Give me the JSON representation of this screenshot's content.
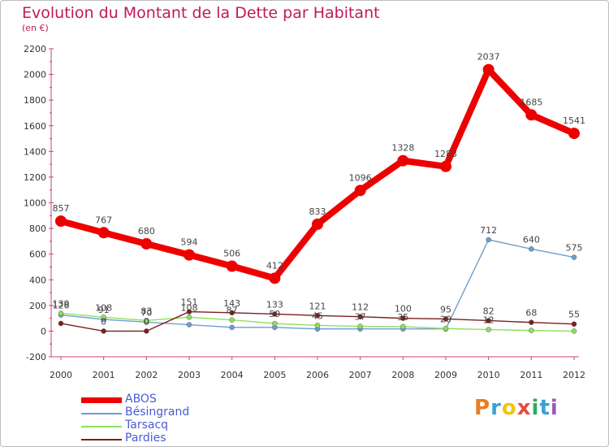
{
  "title": "Evolution du Montant de la Dette par Habitant",
  "subtitle": "(en €)",
  "logo": {
    "letters": [
      "P",
      "r",
      "o",
      "x",
      "i",
      "t",
      "i"
    ],
    "colors": [
      "#e67e22",
      "#3aa0d8",
      "#f1c40f",
      "#e74c3c",
      "#27ae60",
      "#3aa0d8",
      "#9b59b6"
    ]
  },
  "chart_data": {
    "type": "line",
    "categories": [
      "2000",
      "2001",
      "2002",
      "2003",
      "2004",
      "2005",
      "2006",
      "2007",
      "2008",
      "2009",
      "2010",
      "2011",
      "2012"
    ],
    "ylim": [
      -200,
      2200
    ],
    "yticks": [
      -200,
      0,
      200,
      400,
      600,
      800,
      1000,
      1200,
      1400,
      1600,
      1800,
      2000,
      2200
    ],
    "grid": false,
    "legend_position": "bottom-left",
    "series": [
      {
        "name": "ABOS",
        "color": "#ee0000",
        "values": [
          857,
          767,
          680,
          594,
          506,
          412,
          833,
          1096,
          1328,
          1283,
          2037,
          1685,
          1541
        ]
      },
      {
        "name": "Bésingrand",
        "color": "#6aa0d0",
        "values": [
          126,
          91,
          70,
          50,
          29,
          29,
          17,
          17,
          17,
          17,
          712,
          640,
          575
        ]
      },
      {
        "name": "Tarsacq",
        "color": "#8ee05c",
        "values": [
          139,
          108,
          83,
          108,
          87,
          59,
          45,
          37,
          35,
          20,
          12,
          5,
          0
        ]
      },
      {
        "name": "Pardies",
        "color": "#7a1f1f",
        "values": [
          60,
          0,
          0,
          151,
          143,
          133,
          121,
          112,
          100,
          95,
          82,
          68,
          55
        ]
      }
    ],
    "labels": {
      "ABOS": [
        "857",
        "767",
        "680",
        "594",
        "506",
        "412",
        "833",
        "1096",
        "1328",
        "1283",
        "2037",
        "1685",
        "1541"
      ],
      "Bésingrand": [
        "126",
        "91",
        "70",
        "",
        "",
        "",
        "",
        "",
        "",
        "",
        "712",
        "640",
        "575"
      ],
      "Tarsacq": [
        "139",
        "108",
        "83",
        "108",
        "87",
        "59",
        "45",
        "37",
        "35",
        "20",
        "12",
        "",
        ""
      ],
      "Pardies": [
        "",
        "0",
        "0",
        "151",
        "143",
        "133",
        "121",
        "112",
        "100",
        "95",
        "82",
        "68",
        "55"
      ]
    }
  }
}
